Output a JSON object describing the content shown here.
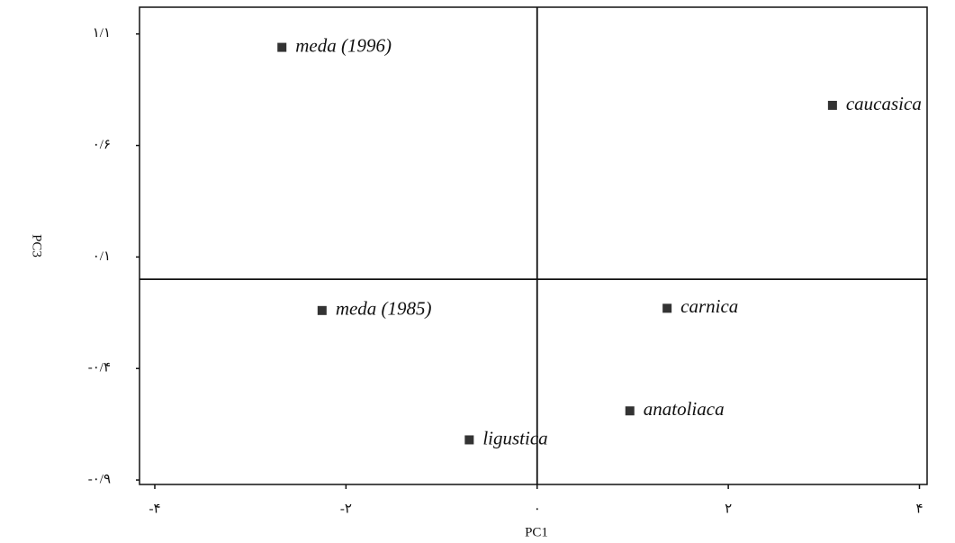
{
  "chart_data": {
    "type": "scatter",
    "x_label": "PC1",
    "y_label": "PC3",
    "labels": [
      "meda (1996)",
      "caucasica",
      "meda (1985)",
      "carnica",
      "anatoliaca",
      "ligustica"
    ],
    "x": [
      -2.67,
      3.09,
      -2.25,
      1.36,
      0.97,
      -0.71
    ],
    "y": [
      1.04,
      0.78,
      -0.14,
      -0.13,
      -0.59,
      -0.72
    ],
    "color": "#333333",
    "xlim": [
      -4.16,
      4.08
    ],
    "ylim": [
      -0.92,
      1.22
    ],
    "xticks": [
      {
        "value": -4,
        "label": "-۴"
      },
      {
        "value": -2,
        "label": "-۲"
      },
      {
        "value": 0,
        "label": "۰"
      },
      {
        "value": 2,
        "label": "۲"
      },
      {
        "value": 4,
        "label": "۴"
      }
    ],
    "yticks": [
      {
        "value": 1.1,
        "label": "۱/۱"
      },
      {
        "value": 0.6,
        "label": "۰/۶"
      },
      {
        "value": 0.1,
        "label": "۰/۱"
      },
      {
        "value": -0.4,
        "label": "-۰/۴"
      },
      {
        "value": -0.9,
        "label": "-۰/۹"
      }
    ]
  }
}
